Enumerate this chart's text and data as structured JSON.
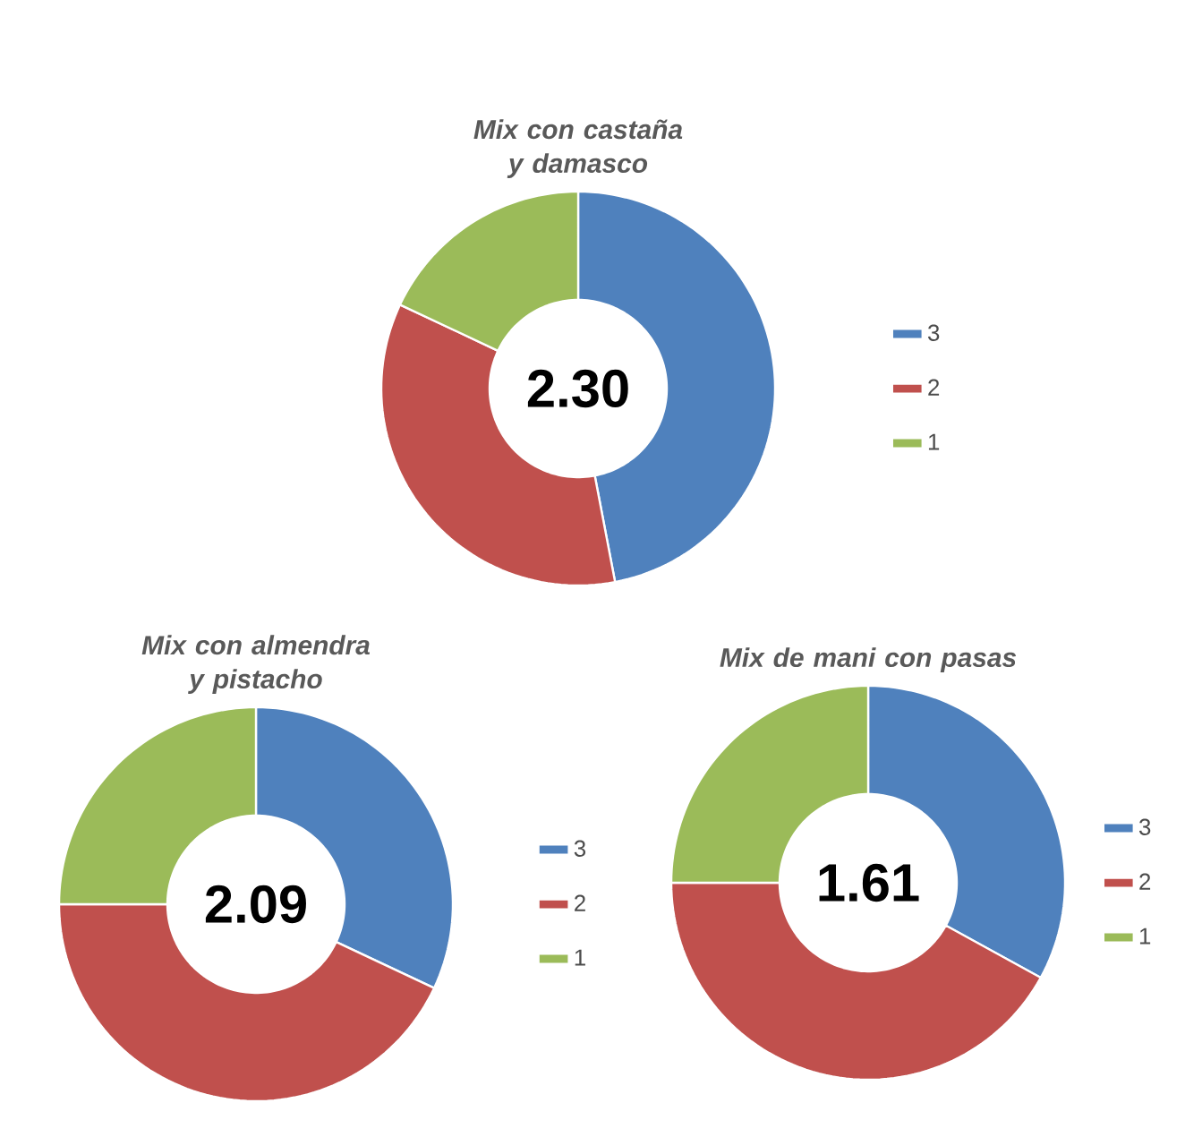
{
  "chart_data": [
    {
      "type": "donut",
      "title": "Mix con castaña y damasco",
      "categories": [
        "3",
        "2",
        "1"
      ],
      "values": [
        47,
        35,
        18
      ],
      "colors": [
        "#4f81bd",
        "#c0504d",
        "#9bbb59"
      ],
      "legend": "right",
      "annotations": [
        "2.30"
      ]
    },
    {
      "type": "donut",
      "title": "Mix con almendra y pistacho",
      "categories": [
        "3",
        "2",
        "1"
      ],
      "values": [
        32,
        43,
        25
      ],
      "colors": [
        "#4f81bd",
        "#c0504d",
        "#9bbb59"
      ],
      "legend": "right",
      "annotations": [
        "2.09"
      ]
    },
    {
      "type": "donut",
      "title": "Mix de mani con pasas",
      "categories": [
        "3",
        "2",
        "1"
      ],
      "values": [
        33,
        42,
        25
      ],
      "colors": [
        "#4f81bd",
        "#c0504d",
        "#9bbb59"
      ],
      "legend": "right",
      "annotations": [
        "1.61"
      ]
    }
  ]
}
